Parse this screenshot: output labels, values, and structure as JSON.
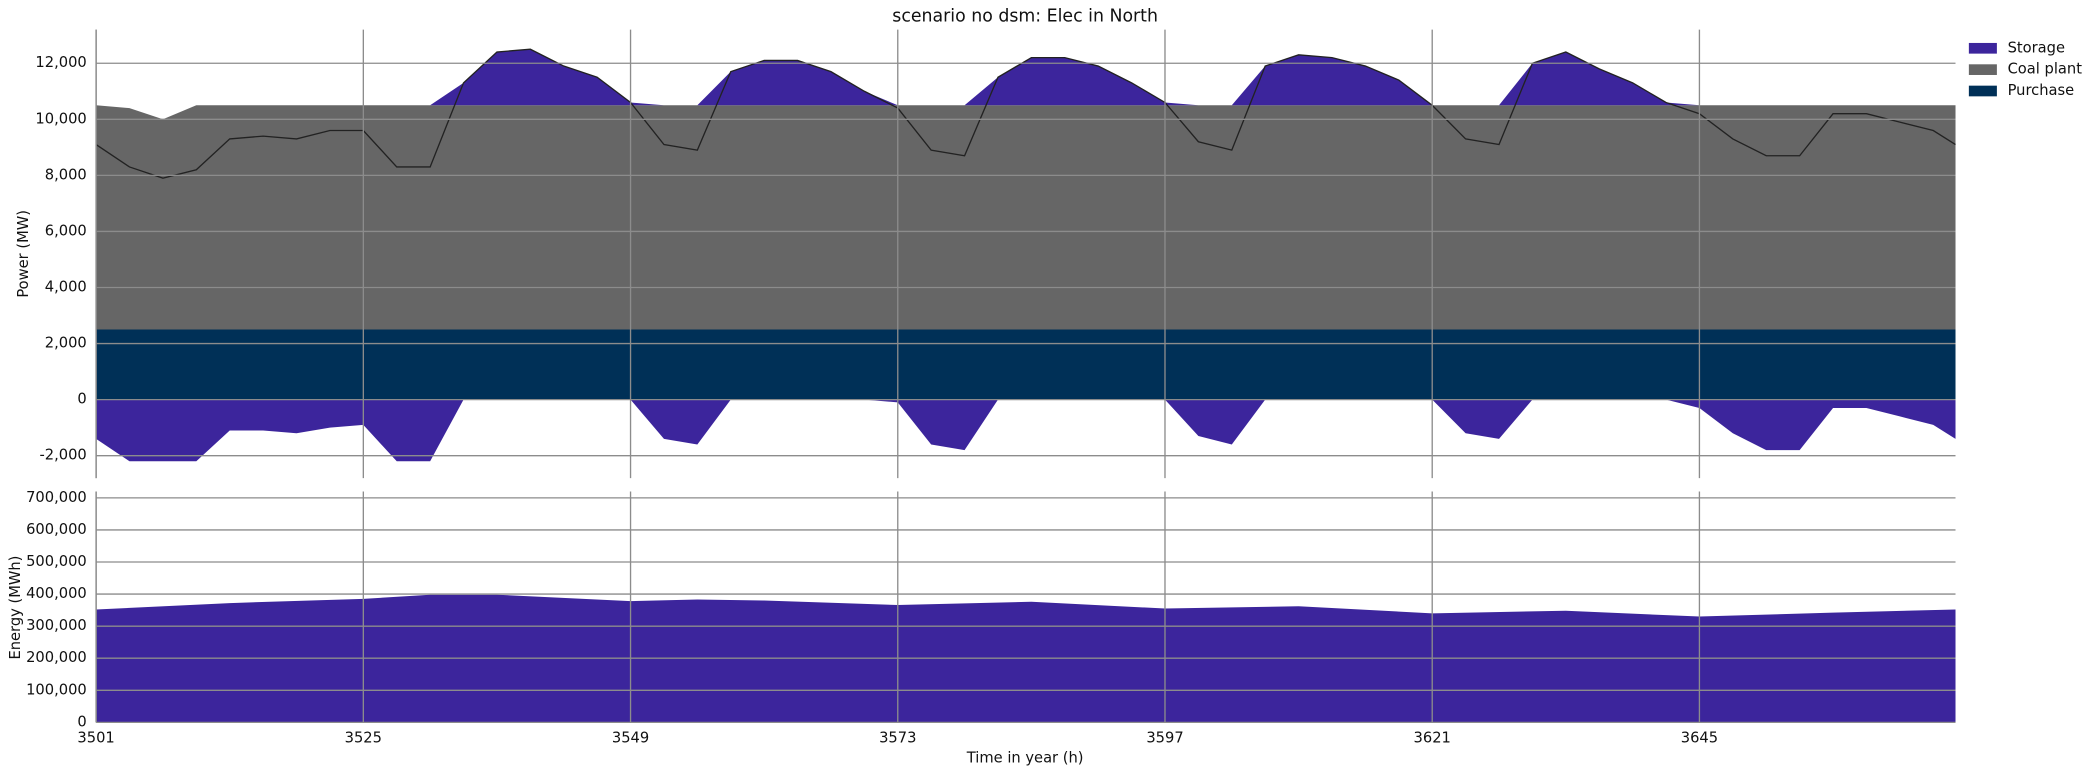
{
  "chart_data": [
    {
      "type": "area",
      "title": "scenario no dsm: Elec in North",
      "ylabel": "Power (MW)",
      "x": [
        3501,
        3504,
        3507,
        3510,
        3513,
        3516,
        3519,
        3522,
        3525,
        3528,
        3531,
        3534,
        3537,
        3540,
        3543,
        3546,
        3549,
        3552,
        3555,
        3558,
        3561,
        3564,
        3567,
        3570,
        3573,
        3576,
        3579,
        3582,
        3585,
        3588,
        3591,
        3594,
        3597,
        3600,
        3603,
        3606,
        3609,
        3612,
        3615,
        3618,
        3621,
        3624,
        3627,
        3630,
        3633,
        3636,
        3639,
        3642,
        3645,
        3648,
        3651,
        3654,
        3657,
        3660,
        3663,
        3666,
        3668
      ],
      "series": [
        {
          "name": "Storage",
          "color": "#3c259c",
          "type": "area",
          "values": [
            -1400,
            -2200,
            -2200,
            -2200,
            -1100,
            -1100,
            -1200,
            -1000,
            -900,
            -2200,
            -2200,
            800,
            1900,
            2000,
            1400,
            1000,
            100,
            -1400,
            -1600,
            1200,
            1600,
            1600,
            1200,
            500,
            -100,
            -1600,
            -1800,
            1000,
            1700,
            1700,
            1400,
            800,
            100,
            -1300,
            -1600,
            1400,
            1800,
            1700,
            1400,
            900,
            0,
            -1200,
            -1400,
            1500,
            1900,
            1300,
            800,
            100,
            -300,
            -1200,
            -1800,
            -1800,
            -300,
            -300,
            -600,
            -900,
            -1400
          ]
        },
        {
          "name": "Coal plant",
          "color": "#666666",
          "type": "area",
          "values": [
            8000,
            7900,
            7500,
            8000,
            8000,
            8000,
            8000,
            8000,
            8000,
            8000,
            8000,
            8000,
            8000,
            8000,
            8000,
            8000,
            8000,
            8000,
            8000,
            8000,
            8000,
            8000,
            8000,
            8000,
            8000,
            8000,
            8000,
            8000,
            8000,
            8000,
            8000,
            8000,
            8000,
            8000,
            8000,
            8000,
            8000,
            8000,
            8000,
            8000,
            8000,
            8000,
            8000,
            8000,
            8000,
            8000,
            8000,
            8000,
            8000,
            8000,
            8000,
            8000,
            8000,
            8000,
            8000,
            8000,
            8000
          ]
        },
        {
          "name": "Purchase",
          "color": "#003057",
          "type": "area",
          "values": [
            2500,
            2500,
            2500,
            2500,
            2500,
            2500,
            2500,
            2500,
            2500,
            2500,
            2500,
            2500,
            2500,
            2500,
            2500,
            2500,
            2500,
            2500,
            2500,
            2500,
            2500,
            2500,
            2500,
            2500,
            2500,
            2500,
            2500,
            2500,
            2500,
            2500,
            2500,
            2500,
            2500,
            2500,
            2500,
            2500,
            2500,
            2500,
            2500,
            2500,
            2500,
            2500,
            2500,
            2500,
            2500,
            2500,
            2500,
            2500,
            2500,
            2500,
            2500,
            2500,
            2500,
            2500,
            2500,
            2500,
            2500
          ]
        },
        {
          "color": "#222222",
          "type": "line",
          "values": [
            9100,
            8300,
            7900,
            8200,
            9300,
            9400,
            9300,
            9600,
            9600,
            8300,
            8300,
            11300,
            12400,
            12500,
            11900,
            11500,
            10600,
            9100,
            8900,
            11700,
            12100,
            12100,
            11700,
            11000,
            10400,
            8900,
            8700,
            11500,
            12200,
            12200,
            11900,
            11300,
            10600,
            9200,
            8900,
            11900,
            12300,
            12200,
            11900,
            11400,
            10500,
            9300,
            9100,
            12000,
            12400,
            11800,
            11300,
            10600,
            10200,
            9300,
            8700,
            8700,
            10200,
            10200,
            9900,
            9600,
            9100
          ]
        }
      ],
      "xlim": [
        3501,
        3668
      ],
      "ylim": [
        -2800,
        13200
      ],
      "yticks": [
        {
          "value": -2000,
          "label": "-2,000"
        },
        0,
        {
          "value": 2000,
          "label": "2,000"
        },
        {
          "value": 4000,
          "label": "4,000"
        },
        {
          "value": 6000,
          "label": "6,000"
        },
        {
          "value": 8000,
          "label": "8,000"
        },
        {
          "value": 10000,
          "label": "10,000"
        },
        {
          "value": 12000,
          "label": "12,000"
        }
      ],
      "grid": true,
      "legend": "outside right"
    },
    {
      "type": "area",
      "xlabel": "Time in year (h)",
      "ylabel": "Energy (MWh)",
      "color": "#3c259c",
      "x": [
        3501,
        3513,
        3525,
        3531,
        3537,
        3549,
        3555,
        3561,
        3573,
        3585,
        3597,
        3609,
        3621,
        3633,
        3645,
        3657,
        3668
      ],
      "values": [
        352000,
        372000,
        385000,
        398000,
        398000,
        378000,
        383000,
        380000,
        366000,
        376000,
        355000,
        362000,
        340000,
        348000,
        330000,
        342000,
        352000
      ],
      "xlim": [
        3501,
        3668
      ],
      "ylim": [
        0,
        720000
      ],
      "xticks": [
        3501,
        3525,
        3549,
        3573,
        3597,
        3621,
        3645
      ],
      "yticks": [
        0,
        {
          "value": 100000,
          "label": "100,000"
        },
        {
          "value": 200000,
          "label": "200,000"
        },
        {
          "value": 300000,
          "label": "300,000"
        },
        {
          "value": 400000,
          "label": "400,000"
        },
        {
          "value": 500000,
          "label": "500,000"
        },
        {
          "value": 600000,
          "label": "600,000"
        },
        {
          "value": 700000,
          "label": "700,000"
        }
      ],
      "grid": true
    }
  ]
}
